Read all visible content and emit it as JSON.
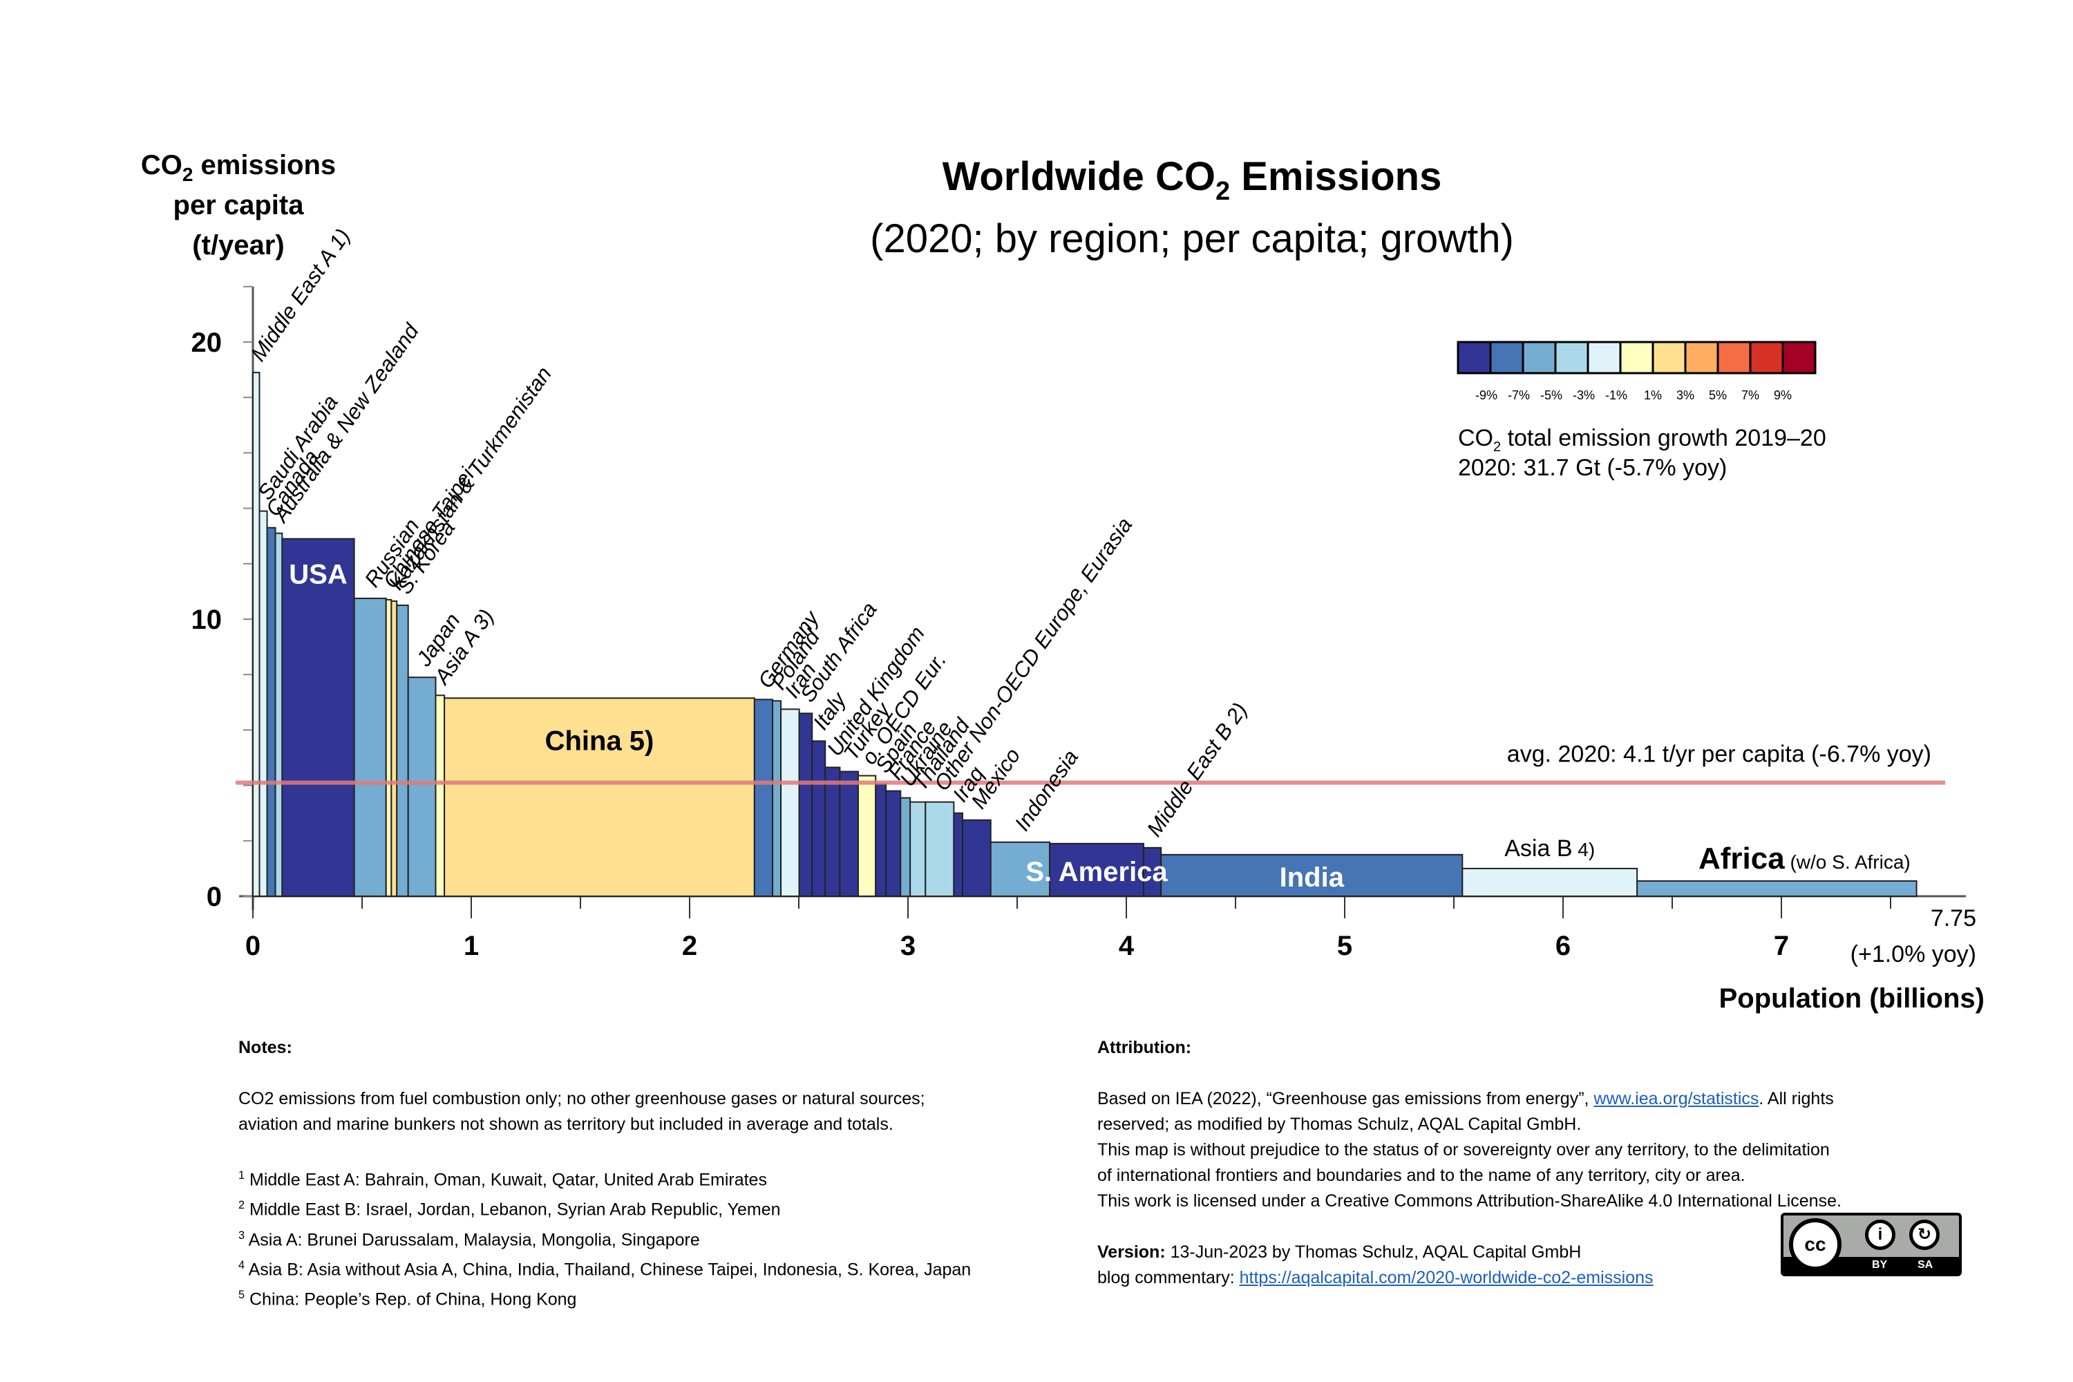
{
  "chart_data": {
    "type": "bar",
    "variant": "variable-width (marimekko) bars; width = population, height = per-capita emissions, color = growth",
    "title": "Worldwide CO2 Emissions",
    "title_parts": [
      "Worldwide CO",
      "2",
      " Emissions"
    ],
    "subtitle": "(2020; by region; per capita; growth)",
    "ylabel_lines": [
      "CO",
      "2",
      " emissions",
      "per capita",
      "(t/year)"
    ],
    "xlabel": "Population (billions)",
    "xlim": [
      0,
      7.75
    ],
    "ylim": [
      0,
      22
    ],
    "x_ticks": [
      0,
      1,
      2,
      3,
      4,
      5,
      6,
      7
    ],
    "x_tick_labels": [
      "0",
      "1",
      "2",
      "3",
      "4",
      "5",
      "6",
      "7"
    ],
    "y_ticks": [
      0,
      10,
      20
    ],
    "y_tick_labels": [
      "0",
      "10",
      "20"
    ],
    "x_end_label": "7.75",
    "x_end_sublabel": "(+1.0% yoy)",
    "grid": false,
    "average_line": {
      "value": 4.1,
      "label": "avg. 2020: 4.1 t/yr per capita (-6.7% yoy)",
      "color": "#e07b7b"
    },
    "growth_legend": {
      "ticks": [
        "-9%",
        "-7%",
        "-5%",
        "-3%",
        "-1%",
        "1%",
        "3%",
        "5%",
        "7%",
        "9%"
      ],
      "colors": [
        "#313695",
        "#4575b4",
        "#74add1",
        "#abd9e9",
        "#e0f3f8",
        "#ffffbf",
        "#fee090",
        "#fdae61",
        "#f46d43",
        "#d73027",
        "#a50026"
      ],
      "caption_line1_parts": [
        "CO",
        "2",
        " total emission growth 2019–20"
      ],
      "caption_line2": "2020: 31.7 Gt (-5.7% yoy)"
    },
    "series": [
      {
        "name": "Middle East A",
        "note": "1)",
        "population": 0.03,
        "per_capita": 18.9,
        "growth_bin": 4
      },
      {
        "name": "Saudi Arabia",
        "population": 0.035,
        "per_capita": 13.9,
        "growth_bin": 4
      },
      {
        "name": "Canada",
        "population": 0.038,
        "per_capita": 13.3,
        "growth_bin": 1
      },
      {
        "name": "Australia & New Zealand",
        "population": 0.031,
        "per_capita": 13.1,
        "growth_bin": 3
      },
      {
        "name": "USA",
        "population": 0.33,
        "per_capita": 12.9,
        "growth_bin": 0,
        "inbar": true
      },
      {
        "name": "Russian",
        "population": 0.146,
        "per_capita": 10.75,
        "growth_bin": 2
      },
      {
        "name": "Chinese Taipei",
        "population": 0.024,
        "per_capita": 10.7,
        "growth_bin": 5
      },
      {
        "name": "Kazakhstan & Turkmenistan",
        "population": 0.025,
        "per_capita": 10.65,
        "growth_bin": 6
      },
      {
        "name": "S. Korea",
        "population": 0.052,
        "per_capita": 10.5,
        "growth_bin": 2
      },
      {
        "name": "Japan",
        "population": 0.126,
        "per_capita": 7.9,
        "growth_bin": 2
      },
      {
        "name": "Asia A",
        "note": "3)",
        "population": 0.04,
        "per_capita": 7.25,
        "growth_bin": 5
      },
      {
        "name": "China",
        "note": "5)",
        "population": 1.42,
        "per_capita": 7.15,
        "growth_bin": 6,
        "inbar": true
      },
      {
        "name": "Germany",
        "population": 0.083,
        "per_capita": 7.1,
        "growth_bin": 1
      },
      {
        "name": "Poland",
        "population": 0.038,
        "per_capita": 7.05,
        "growth_bin": 2
      },
      {
        "name": "Iran",
        "population": 0.084,
        "per_capita": 6.75,
        "growth_bin": 4
      },
      {
        "name": "South Africa",
        "population": 0.059,
        "per_capita": 6.6,
        "growth_bin": 0
      },
      {
        "name": "Italy",
        "population": 0.06,
        "per_capita": 5.6,
        "growth_bin": 0
      },
      {
        "name": "United Kingdom",
        "population": 0.067,
        "per_capita": 4.65,
        "growth_bin": 0
      },
      {
        "name": "Turkey",
        "population": 0.084,
        "per_capita": 4.5,
        "growth_bin": 0
      },
      {
        "name": "o. OECD Eur.",
        "population": 0.08,
        "per_capita": 4.35,
        "growth_bin": 5
      },
      {
        "name": "Spain",
        "population": 0.047,
        "per_capita": 4.05,
        "growth_bin": 0
      },
      {
        "name": "France",
        "population": 0.067,
        "per_capita": 3.8,
        "growth_bin": 0
      },
      {
        "name": "Ukraine",
        "population": 0.044,
        "per_capita": 3.55,
        "growth_bin": 2
      },
      {
        "name": "Thailand",
        "population": 0.07,
        "per_capita": 3.4,
        "growth_bin": 3
      },
      {
        "name": "Other Non-OECD Europe, Eurasia",
        "population": 0.13,
        "per_capita": 3.4,
        "growth_bin": 3
      },
      {
        "name": "Iraq",
        "population": 0.04,
        "per_capita": 3.0,
        "growth_bin": 0
      },
      {
        "name": "Mexico",
        "population": 0.129,
        "per_capita": 2.75,
        "growth_bin": 0
      },
      {
        "name": "Indonesia",
        "population": 0.27,
        "per_capita": 1.95,
        "growth_bin": 2
      },
      {
        "name": "S. America",
        "population": 0.43,
        "per_capita": 1.9,
        "growth_bin": 0,
        "inbar": true
      },
      {
        "name": "Middle East B",
        "note": "2)",
        "population": 0.08,
        "per_capita": 1.75,
        "growth_bin": 0
      },
      {
        "name": "India",
        "population": 1.38,
        "per_capita": 1.5,
        "growth_bin": 1,
        "inbar": true
      },
      {
        "name": "Asia B",
        "note": "4)",
        "population": 0.8,
        "per_capita": 1.0,
        "growth_bin": 4
      },
      {
        "name": "Africa",
        "suffix": "(w/o S. Africa)",
        "population": 1.28,
        "per_capita": 0.55,
        "growth_bin": 2
      }
    ]
  },
  "notes": {
    "heading": "Notes:",
    "lines": [
      "CO2 emissions from fuel combustion only; no other greenhouse gases or natural sources;",
      "aviation and marine bunkers not shown as territory but included in average and totals."
    ],
    "footnotes": [
      {
        "num": "1",
        "text": "Middle East A: Bahrain, Oman, Kuwait, Qatar, United Arab Emirates"
      },
      {
        "num": "2",
        "text": "Middle East B: Israel, Jordan, Lebanon, Syrian Arab Republic, Yemen"
      },
      {
        "num": "3",
        "text": "Asia A: Brunei Darussalam, Malaysia, Mongolia, Singapore"
      },
      {
        "num": "4",
        "text": "Asia B: Asia without Asia A, China, India, Thailand, Chinese Taipei, Indonesia, S. Korea, Japan"
      },
      {
        "num": "5",
        "text": "China: People’s Rep. of China, Hong Kong"
      }
    ]
  },
  "attribution": {
    "heading": "Attribution:",
    "line1_pre": "Based on IEA (2022), “Greenhouse gas emissions from energy”, ",
    "line1_link": "www.iea.org/statistics",
    "line1_post": ". All rights",
    "line2": "reserved; as modified by Thomas Schulz, AQAL Capital GmbH.",
    "line3": "This map is without prejudice to the status of or sovereignty over any territory, to the delimitation",
    "line4": "of international frontiers and boundaries and to the name of any territory, city or area.",
    "line5": "This work is licensed under a Creative Commons Attribution-ShareAlike 4.0 International License.",
    "version_label": "Version:",
    "version_text": " 13-Jun-2023 by Thomas Schulz, AQAL Capital GmbH",
    "blog_label": "blog commentary: ",
    "blog_link": "https://aqalcapital.com/2020-worldwide-co2-emissions",
    "license_badge": {
      "cc": "cc",
      "by": "BY",
      "sa": "SA",
      "icon": "creative-commons-by-sa-icon"
    }
  }
}
